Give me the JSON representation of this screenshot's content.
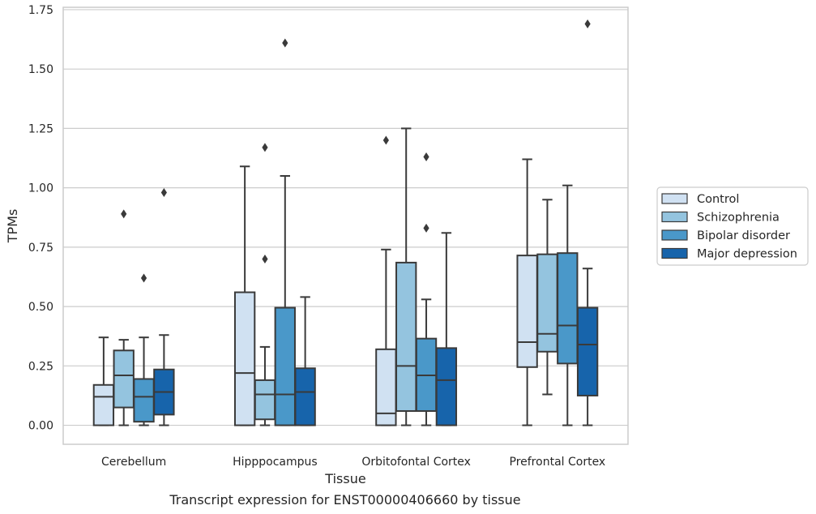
{
  "chart_data": {
    "type": "box",
    "title": "",
    "caption": "Transcript expression for ENST00000406660 by tissue",
    "xlabel": "Tissue",
    "ylabel": "TPMs",
    "ylim": [
      -0.08,
      1.76
    ],
    "yticks": [
      "0.00",
      "0.25",
      "0.50",
      "0.75",
      "1.00",
      "1.25",
      "1.50",
      "1.75"
    ],
    "grid": "horizontal",
    "legend_position": "right",
    "categories": [
      "Cerebellum",
      "Hipppocampus",
      "Orbitofontal Cortex",
      "Prefrontal Cortex"
    ],
    "series": [
      {
        "name": "Control",
        "color": "#d0e1f2",
        "boxes": [
          {
            "whisker_low": 0.0,
            "q1": 0.0,
            "median": 0.12,
            "q3": 0.17,
            "whisker_high": 0.37,
            "outliers": []
          },
          {
            "whisker_low": 0.0,
            "q1": 0.0,
            "median": 0.22,
            "q3": 0.56,
            "whisker_high": 1.09,
            "outliers": []
          },
          {
            "whisker_low": 0.0,
            "q1": 0.0,
            "median": 0.05,
            "q3": 0.32,
            "whisker_high": 0.74,
            "outliers": [
              1.2
            ]
          },
          {
            "whisker_low": 0.0,
            "q1": 0.245,
            "median": 0.35,
            "q3": 0.715,
            "whisker_high": 1.12,
            "outliers": []
          }
        ]
      },
      {
        "name": "Schizophrenia",
        "color": "#94c4df",
        "boxes": [
          {
            "whisker_low": 0.0,
            "q1": 0.075,
            "median": 0.21,
            "q3": 0.315,
            "whisker_high": 0.36,
            "outliers": [
              0.89
            ]
          },
          {
            "whisker_low": 0.0,
            "q1": 0.025,
            "median": 0.13,
            "q3": 0.19,
            "whisker_high": 0.33,
            "outliers": [
              0.7,
              1.17
            ]
          },
          {
            "whisker_low": 0.0,
            "q1": 0.06,
            "median": 0.25,
            "q3": 0.685,
            "whisker_high": 1.25,
            "outliers": []
          },
          {
            "whisker_low": 0.13,
            "q1": 0.31,
            "median": 0.385,
            "q3": 0.72,
            "whisker_high": 0.95,
            "outliers": []
          }
        ]
      },
      {
        "name": "Bipolar disorder",
        "color": "#4a98c9",
        "boxes": [
          {
            "whisker_low": 0.0,
            "q1": 0.015,
            "median": 0.12,
            "q3": 0.195,
            "whisker_high": 0.37,
            "outliers": [
              0.62
            ]
          },
          {
            "whisker_low": 0.0,
            "q1": 0.0,
            "median": 0.13,
            "q3": 0.495,
            "whisker_high": 1.05,
            "outliers": [
              1.61
            ]
          },
          {
            "whisker_low": 0.0,
            "q1": 0.06,
            "median": 0.21,
            "q3": 0.365,
            "whisker_high": 0.53,
            "outliers": [
              0.83,
              1.13
            ]
          },
          {
            "whisker_low": 0.0,
            "q1": 0.26,
            "median": 0.42,
            "q3": 0.725,
            "whisker_high": 1.01,
            "outliers": []
          }
        ]
      },
      {
        "name": "Major depression",
        "color": "#1764ab",
        "boxes": [
          {
            "whisker_low": 0.0,
            "q1": 0.045,
            "median": 0.14,
            "q3": 0.235,
            "whisker_high": 0.38,
            "outliers": [
              0.98
            ]
          },
          {
            "whisker_low": 0.0,
            "q1": 0.0,
            "median": 0.14,
            "q3": 0.24,
            "whisker_high": 0.54,
            "outliers": []
          },
          {
            "whisker_low": 0.0,
            "q1": 0.0,
            "median": 0.19,
            "q3": 0.325,
            "whisker_high": 0.81,
            "outliers": []
          },
          {
            "whisker_low": 0.0,
            "q1": 0.125,
            "median": 0.34,
            "q3": 0.495,
            "whisker_high": 0.66,
            "outliers": [
              1.69
            ]
          }
        ]
      }
    ]
  }
}
